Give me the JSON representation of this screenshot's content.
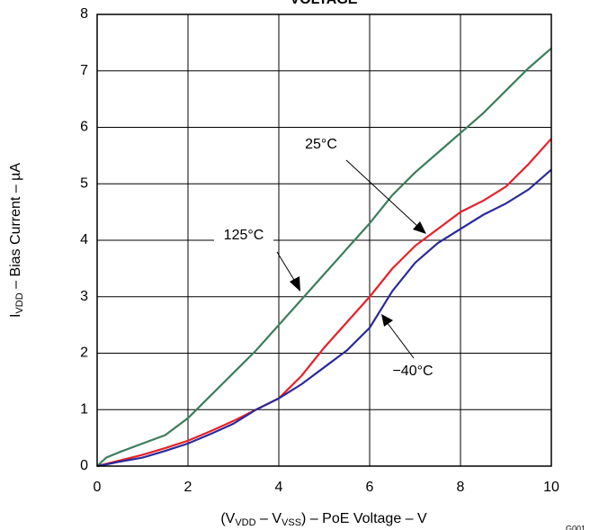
{
  "chart_data": {
    "type": "line",
    "title": "VOLTAGE",
    "xlabel": [
      "(V",
      "VDD",
      " – V",
      "VSS",
      ") – PoE Voltage – V"
    ],
    "ylabel": [
      "I",
      "VDD",
      " – Bias Current – µA"
    ],
    "figure_id": "G001",
    "x": [
      0,
      0.2,
      0.5,
      1,
      1.5,
      2,
      2.5,
      3,
      3.5,
      4,
      4.5,
      5,
      5.5,
      6,
      6.5,
      7,
      7.5,
      8,
      8.5,
      9,
      9.5,
      10
    ],
    "series": [
      {
        "name": "125°C",
        "color": "#3d7d5c",
        "values": [
          0,
          0.15,
          0.25,
          0.4,
          0.55,
          0.85,
          1.25,
          1.65,
          2.05,
          2.5,
          2.95,
          3.4,
          3.85,
          4.3,
          4.8,
          5.2,
          5.55,
          5.9,
          6.25,
          6.65,
          7.05,
          7.4
        ]
      },
      {
        "name": "25°C",
        "color": "#e8202a",
        "values": [
          0,
          0.04,
          0.1,
          0.2,
          0.32,
          0.45,
          0.62,
          0.8,
          1.0,
          1.2,
          1.6,
          2.1,
          2.55,
          3.0,
          3.5,
          3.9,
          4.2,
          4.5,
          4.7,
          4.95,
          5.35,
          5.8
        ]
      },
      {
        "name": "−40°C",
        "color": "#2a2a9a",
        "values": [
          0,
          0.03,
          0.08,
          0.15,
          0.27,
          0.4,
          0.57,
          0.75,
          1.0,
          1.2,
          1.45,
          1.75,
          2.05,
          2.45,
          3.1,
          3.6,
          3.95,
          4.2,
          4.45,
          4.65,
          4.9,
          5.25
        ]
      }
    ],
    "xlim": [
      0,
      10
    ],
    "xticks": [
      0,
      2,
      4,
      6,
      8,
      10
    ],
    "ylim": [
      0,
      8
    ],
    "yticks": [
      0,
      1,
      2,
      3,
      4,
      5,
      6,
      7,
      8
    ],
    "grid": true
  }
}
